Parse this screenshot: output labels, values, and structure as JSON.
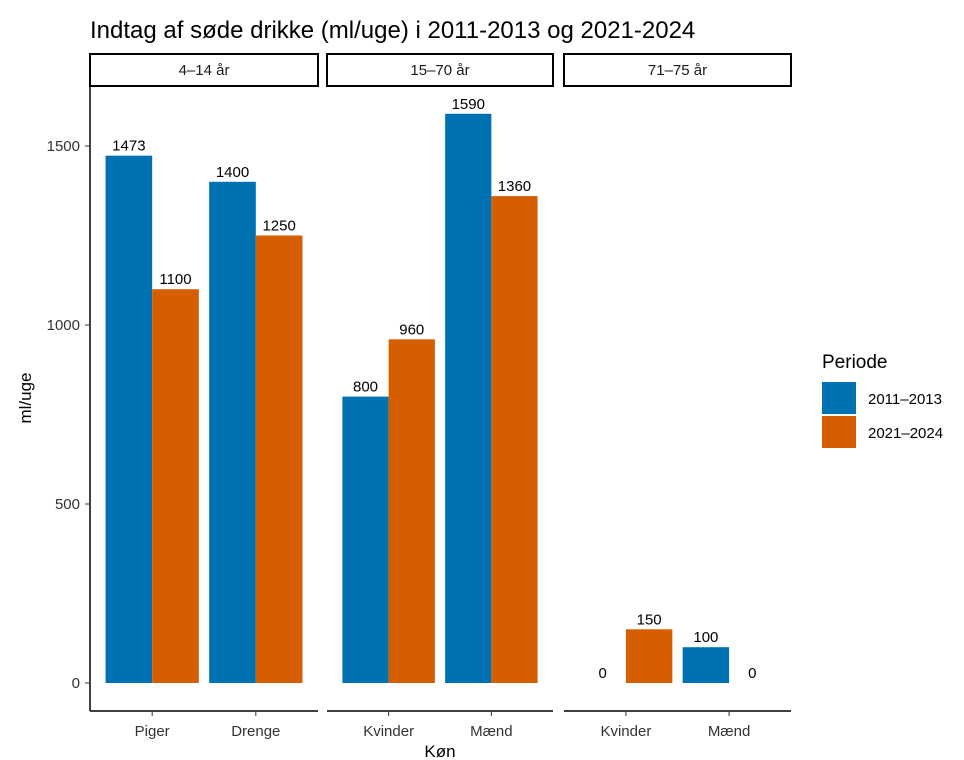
{
  "chart_data": {
    "type": "bar",
    "title": "Indtag af søde drikke (ml/uge) i 2011-2013 og 2021-2024",
    "xlabel": "Køn",
    "ylabel": "ml/uge",
    "ylim": [
      0,
      1650
    ],
    "yticks": [
      0,
      500,
      1000,
      1500
    ],
    "grid": false,
    "legend": {
      "title": "Periode",
      "placement": "right",
      "entries": [
        "2011–2013",
        "2021–2024"
      ]
    },
    "series_colors": [
      "#0072B2",
      "#D55E00"
    ],
    "facets": [
      {
        "label": "4–14 år",
        "categories": [
          "Piger",
          "Drenge"
        ],
        "series": [
          {
            "name": "2011–2013",
            "values": [
              1473,
              1400
            ]
          },
          {
            "name": "2021–2024",
            "values": [
              1100,
              1250
            ]
          }
        ]
      },
      {
        "label": "15–70 år",
        "categories": [
          "Kvinder",
          "Mænd"
        ],
        "series": [
          {
            "name": "2011–2013",
            "values": [
              800,
              1590
            ]
          },
          {
            "name": "2021–2024",
            "values": [
              960,
              1360
            ]
          }
        ]
      },
      {
        "label": "71–75 år",
        "categories": [
          "Kvinder",
          "Mænd"
        ],
        "series": [
          {
            "name": "2011–2013",
            "values": [
              0,
              100
            ]
          },
          {
            "name": "2021–2024",
            "values": [
              150,
              0
            ]
          }
        ]
      }
    ]
  }
}
